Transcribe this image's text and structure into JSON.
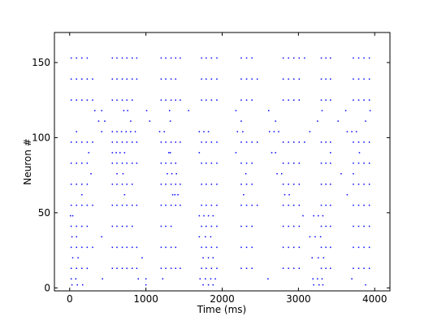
{
  "chart_data": {
    "type": "raster",
    "x_label": "Time (ms)",
    "y_label": "Neuron #",
    "xlim": [
      -200,
      4200
    ],
    "ylim": [
      -2,
      170
    ],
    "xticks": [
      0,
      1000,
      2000,
      3000,
      4000
    ],
    "yticks": [
      0,
      50,
      100,
      150
    ],
    "color": "#0000ff",
    "rows": [
      {
        "neuron": 153,
        "times": [
          20,
          90,
          160,
          230,
          560,
          620,
          690,
          750,
          820,
          880,
          1200,
          1260,
          1330,
          1390,
          1450,
          1730,
          1790,
          1860,
          1930,
          2250,
          2320,
          2390,
          2800,
          2870,
          2940,
          3010,
          3080,
          3300,
          3360,
          3420,
          3720,
          3790,
          3860,
          3930
        ]
      },
      {
        "neuron": 139,
        "times": [
          20,
          90,
          160,
          230,
          300,
          560,
          620,
          690,
          750,
          820,
          880,
          1200,
          1260,
          1330,
          1390,
          1730,
          1790,
          1860,
          1930,
          2250,
          2320,
          2390,
          2460,
          2800,
          2870,
          2940,
          3010,
          3300,
          3360,
          3420,
          3720,
          3790,
          3860,
          3930
        ]
      },
      {
        "neuron": 125,
        "times": [
          20,
          90,
          160,
          230,
          300,
          560,
          620,
          690,
          750,
          820,
          1200,
          1260,
          1330,
          1390,
          1450,
          1730,
          1790,
          1860,
          1930,
          2250,
          2320,
          2390,
          2800,
          2870,
          2940,
          3010,
          3300,
          3360,
          3420,
          3720,
          3790,
          3860,
          3930
        ]
      },
      {
        "neuron": 118,
        "times": [
          330,
          420,
          710,
          760,
          1010,
          1310,
          1560,
          2180,
          2610,
          3310,
          3620,
          3940
        ]
      },
      {
        "neuron": 111,
        "times": [
          380,
          460,
          800,
          1050,
          1320,
          2250,
          2700,
          3250,
          3520,
          3880
        ]
      },
      {
        "neuron": 104,
        "times": [
          90,
          420,
          560,
          620,
          680,
          740,
          800,
          860,
          1180,
          1240,
          1700,
          1760,
          1820,
          2200,
          2270,
          2620,
          2680,
          2740,
          3150,
          3640,
          3700,
          3760
        ]
      },
      {
        "neuron": 97,
        "times": [
          20,
          90,
          160,
          230,
          300,
          560,
          620,
          690,
          750,
          820,
          880,
          1200,
          1260,
          1330,
          1390,
          1450,
          1730,
          1790,
          1860,
          1930,
          2250,
          2320,
          2390,
          2460,
          2800,
          2870,
          2940,
          3010,
          3080,
          3300,
          3360,
          3420,
          3720,
          3790,
          3860,
          3930
        ]
      },
      {
        "neuron": 90,
        "times": [
          250,
          560,
          610,
          660,
          720,
          1300,
          1320,
          1700,
          2180,
          2650,
          2700,
          3420,
          3800
        ]
      },
      {
        "neuron": 83,
        "times": [
          20,
          90,
          160,
          230,
          560,
          620,
          690,
          750,
          820,
          880,
          1200,
          1260,
          1330,
          1390,
          1730,
          1790,
          1860,
          1930,
          2250,
          2320,
          2390,
          2800,
          2870,
          2940,
          3010,
          3300,
          3360,
          3420,
          3720,
          3790,
          3860,
          3930
        ]
      },
      {
        "neuron": 76,
        "times": [
          280,
          620,
          700,
          1280,
          1340,
          1400,
          2310,
          2720,
          2780,
          3560,
          3720
        ]
      },
      {
        "neuron": 69,
        "times": [
          20,
          90,
          160,
          230,
          560,
          620,
          690,
          750,
          820,
          1200,
          1260,
          1330,
          1390,
          1450,
          1730,
          1790,
          1860,
          1930,
          2250,
          2320,
          2390,
          2800,
          2870,
          2940,
          3010,
          3300,
          3360,
          3420,
          3720,
          3790,
          3860,
          3930
        ]
      },
      {
        "neuron": 62,
        "times": [
          160,
          720,
          1350,
          1380,
          1420,
          2280,
          2820,
          2880,
          3640
        ]
      },
      {
        "neuron": 55,
        "times": [
          20,
          90,
          160,
          230,
          300,
          560,
          620,
          690,
          750,
          820,
          880,
          1200,
          1260,
          1330,
          1390,
          1450,
          1730,
          1790,
          1860,
          1930,
          2250,
          2320,
          2390,
          2460,
          2800,
          2870,
          2940,
          3010,
          3300,
          3360,
          3420,
          3720,
          3790,
          3860,
          3930
        ]
      },
      {
        "neuron": 48,
        "times": [
          10,
          40,
          1700,
          1760,
          1820,
          1880,
          3060,
          3200,
          3260,
          3320
        ]
      },
      {
        "neuron": 41,
        "times": [
          20,
          90,
          160,
          230,
          560,
          620,
          690,
          750,
          820,
          1200,
          1260,
          1330,
          1730,
          1790,
          1860,
          1930,
          2250,
          2320,
          2390,
          2800,
          2870,
          2940,
          3010,
          3300,
          3360,
          3420,
          3720,
          3790,
          3860,
          3930
        ]
      },
      {
        "neuron": 34,
        "times": [
          30,
          90,
          420,
          1700,
          1780,
          1850,
          3150,
          3220,
          3290
        ]
      },
      {
        "neuron": 27,
        "times": [
          20,
          90,
          160,
          230,
          300,
          560,
          620,
          690,
          750,
          820,
          880,
          1200,
          1260,
          1330,
          1390,
          1730,
          1790,
          1860,
          1930,
          2250,
          2320,
          2390,
          2800,
          2870,
          2940,
          3010,
          3300,
          3360,
          3420,
          3720,
          3790,
          3860,
          3930
        ]
      },
      {
        "neuron": 20,
        "times": [
          40,
          110,
          950,
          1750,
          1820,
          1880,
          3180,
          3260,
          3330
        ]
      },
      {
        "neuron": 13,
        "times": [
          20,
          90,
          160,
          230,
          560,
          620,
          690,
          750,
          820,
          880,
          1200,
          1260,
          1330,
          1390,
          1450,
          1730,
          1790,
          1860,
          1930,
          2250,
          2320,
          2390,
          2800,
          2870,
          2940,
          3010,
          3300,
          3360,
          3420,
          3720,
          3790,
          3860,
          3930
        ]
      },
      {
        "neuron": 6,
        "times": [
          20,
          80,
          430,
          900,
          1000,
          1220,
          1710,
          1780,
          1850,
          1910,
          2600,
          3190,
          3250,
          3310,
          3700
        ]
      },
      {
        "neuron": 2,
        "times": [
          30,
          100,
          170,
          1000,
          1750,
          1820,
          1880,
          3200,
          3270,
          3320,
          3880
        ]
      }
    ]
  }
}
